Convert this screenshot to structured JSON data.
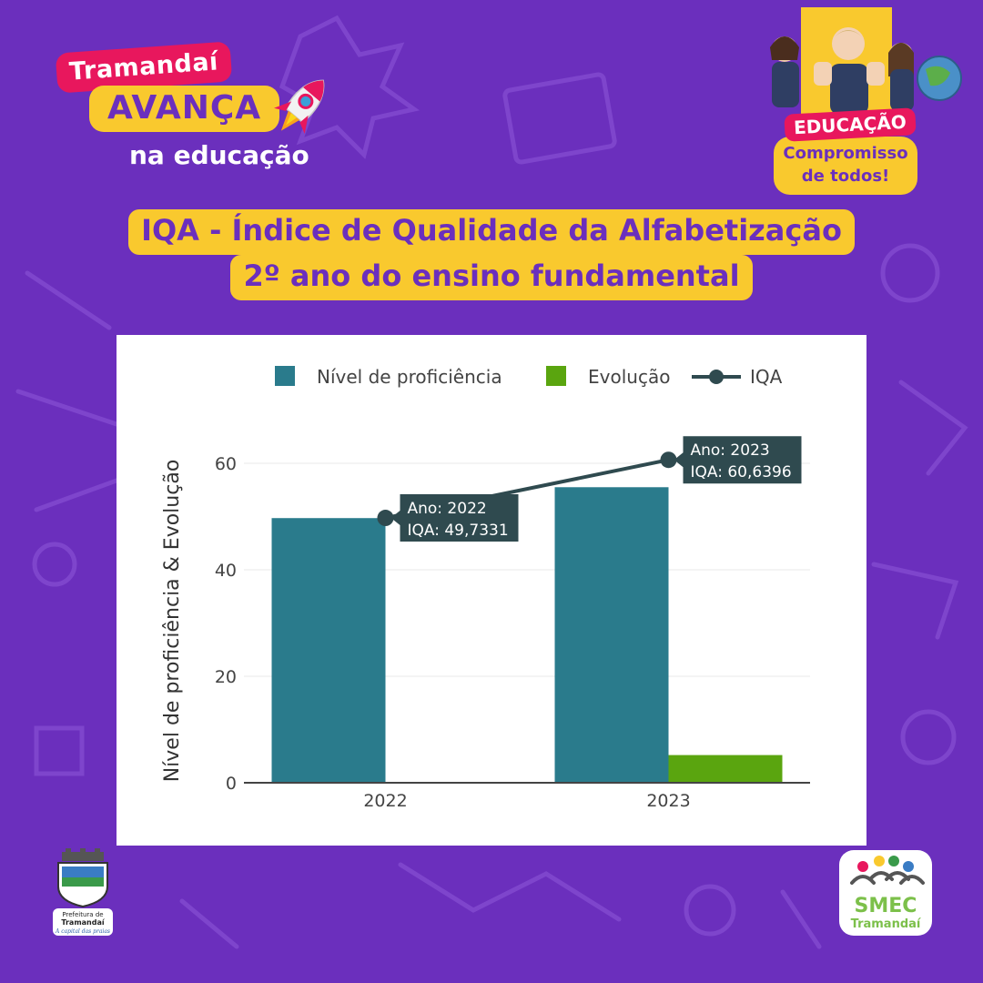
{
  "brand": {
    "line1": "Tramandaí",
    "line2": "AVANÇA",
    "line3": "na educação"
  },
  "badge": {
    "tag": "EDUCAÇÃO",
    "line1": "Compromisso",
    "line2": "de todos!"
  },
  "title": {
    "line1": "IQA - Índice de Qualidade da Alfabetização",
    "line2": "2º ano do ensino fundamental"
  },
  "logos": {
    "left": {
      "top": "Prefeitura de",
      "name": "Tramandaí",
      "tagline": "A capital das praias"
    },
    "right": {
      "name": "SMEC",
      "sub": "Tramandaí"
    }
  },
  "colors": {
    "background": "#6b2fbd",
    "accent_yellow": "#f9c92e",
    "accent_pink": "#e8175d",
    "bar_proficiency": "#2a7b8c",
    "bar_evolution": "#5aa50f",
    "line_iqa": "#2f4a4f"
  },
  "chart_data": {
    "type": "bar",
    "categories": [
      "2022",
      "2023"
    ],
    "series": [
      {
        "name": "Nível de proficiência",
        "type": "bar",
        "values": [
          49.7,
          55.5
        ]
      },
      {
        "name": "Evolução",
        "type": "bar",
        "values": [
          0,
          5.2
        ]
      },
      {
        "name": "IQA",
        "type": "line",
        "values": [
          49.7331,
          60.6396
        ]
      }
    ],
    "ylabel": "Nível de proficiência & Evolução",
    "xlabel": "",
    "ylim": [
      0,
      67
    ],
    "yticks": [
      0,
      20,
      40,
      60
    ],
    "grid": true,
    "legend_position": "top",
    "tooltips": [
      {
        "year_label": "Ano:",
        "year": "2022",
        "iqa_label": "IQA:",
        "iqa": "49,7331"
      },
      {
        "year_label": "Ano:",
        "year": "2023",
        "iqa_label": "IQA:",
        "iqa": "60,6396"
      }
    ]
  }
}
